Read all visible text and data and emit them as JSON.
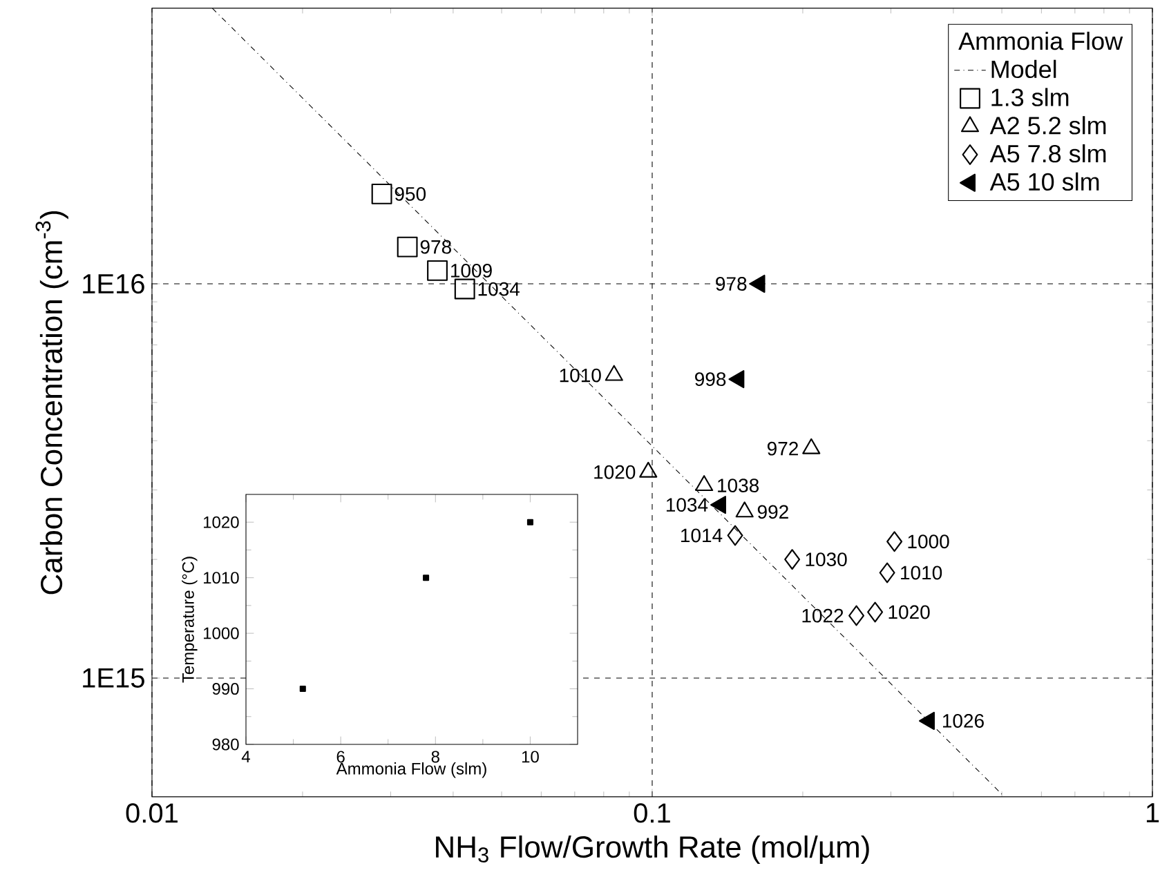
{
  "chart_data": [
    {
      "type": "scatter",
      "xlabel": "NH$_{3}$ Flow/Growth Rate (mol/µm)",
      "ylabel": "Carbon Concentration (cm$^{-3}$)",
      "log": "xy",
      "xlim": [
        0.01,
        1
      ],
      "ylim": [
        500000000000000.0,
        5e+16
      ],
      "xticks": [
        0.01,
        0.1,
        1
      ],
      "yticks": [
        {
          "value": 1000000000000000.0,
          "label": "1E15"
        },
        {
          "value": 1e+16,
          "label": "1E16"
        }
      ],
      "grid": true,
      "legend": "top right",
      "legend_title": "Ammonia Flow",
      "series": [
        {
          "name": "1.3 slm",
          "color": "#000000",
          "marker": "square",
          "x": [
            0.0288,
            0.0324,
            0.0372,
            0.0422
          ],
          "values": [
            1.69e+16,
            1.24e+16,
            1.08e+16,
            9700000000000000.0
          ]
        },
        {
          "name": "A2 5.2 slm",
          "color": "#000000",
          "marker": "triangle",
          "x": [
            0.0839,
            0.0982,
            0.127,
            0.153,
            0.208
          ],
          "values": [
            5860000000000000.0,
            3330000000000000.0,
            3080000000000000.0,
            2640000000000000.0,
            3820000000000000.0
          ]
        },
        {
          "name": "A5 7.8 slm",
          "color": "#000000",
          "marker": "diamond",
          "x": [
            0.1465,
            0.1905,
            0.305,
            0.295,
            0.256,
            0.279
          ],
          "values": [
            2300000000000000.0,
            2000000000000000.0,
            2220000000000000.0,
            1850000000000000.0,
            1440000000000000.0,
            1470000000000000.0
          ]
        },
        {
          "name": "A5 10 slm",
          "color": "#000000",
          "marker": "triangle",
          "x": [
            0.164,
            0.149,
            0.137,
            0.358
          ],
          "values": [
            1e+16,
            5730000000000000.0,
            2750000000000000.0,
            779000000000000.0
          ]
        },
        {
          "name": "Model",
          "type": "line",
          "color": "#000000",
          "marker": "none",
          "line_style": "dashed",
          "x": [
            0.0132,
            0.506
          ],
          "values": [
            5e+16,
            500000000000000.0
          ]
        }
      ],
      "annotations": [
        {
          "text": "950",
          "x": 0.0288,
          "y": 1.69e+16
        },
        {
          "text": "978",
          "x": 0.0324,
          "y": 1.24e+16
        },
        {
          "text": "1009",
          "x": 0.0372,
          "y": 1.08e+16
        },
        {
          "text": "1034",
          "x": 0.0422,
          "y": 9700000000000000.0
        },
        {
          "text": "1010",
          "x": 0.0839,
          "y": 5860000000000000.0
        },
        {
          "text": "1020",
          "x": 0.0982,
          "y": 3330000000000000.0
        },
        {
          "text": "1038",
          "x": 0.127,
          "y": 3080000000000000.0
        },
        {
          "text": "992",
          "x": 0.153,
          "y": 2640000000000000.0
        },
        {
          "text": "972",
          "x": 0.208,
          "y": 3820000000000000.0
        },
        {
          "text": "1014",
          "x": 0.1465,
          "y": 2300000000000000.0
        },
        {
          "text": "1030",
          "x": 0.1905,
          "y": 2000000000000000.0
        },
        {
          "text": "1000",
          "x": 0.305,
          "y": 2220000000000000.0
        },
        {
          "text": "1010",
          "x": 0.295,
          "y": 1850000000000000.0
        },
        {
          "text": "1022",
          "x": 0.256,
          "y": 1440000000000000.0
        },
        {
          "text": "1020",
          "x": 0.279,
          "y": 1470000000000000.0
        },
        {
          "text": "978",
          "x": 0.164,
          "y": 1e+16
        },
        {
          "text": "998",
          "x": 0.149,
          "y": 5730000000000000.0
        },
        {
          "text": "1034",
          "x": 0.137,
          "y": 2750000000000000.0
        },
        {
          "text": "1026",
          "x": 0.358,
          "y": 779000000000000.0
        }
      ]
    },
    {
      "type": "scatter",
      "xlabel": "Ammonia Flow (slm)",
      "ylabel": "Temperature (°C)",
      "xlim": [
        4,
        11
      ],
      "ylim": [
        980,
        1025
      ],
      "xticks": [
        4,
        6,
        8,
        10
      ],
      "yticks": [
        980,
        990,
        1000,
        1010,
        1020
      ],
      "marker": "square",
      "series": [
        {
          "color": "#000000",
          "x": [
            5.2,
            7.8,
            10
          ],
          "values": [
            990,
            1010,
            1020
          ]
        }
      ]
    }
  ]
}
